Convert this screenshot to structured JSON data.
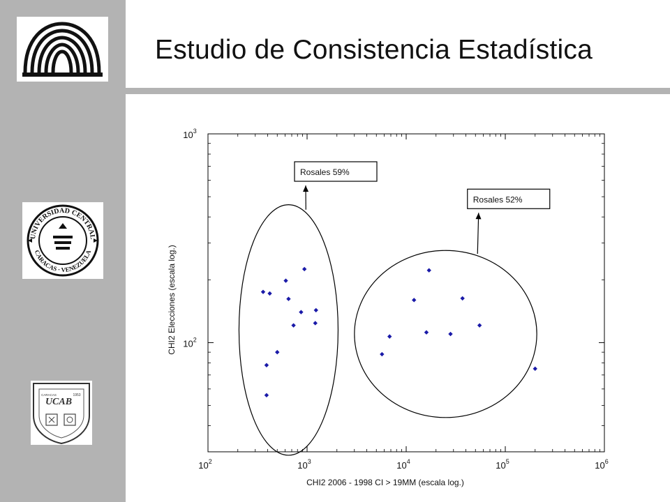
{
  "slide": {
    "title": "Estudio de Consistencia Estadística"
  },
  "logos": {
    "ucv_seal_text_top": "UNIVERSIDAD CENTRAL",
    "ucv_seal_text_bottom": "CARACAS · VENEZUELA",
    "ucab_letters": "UCAB",
    "ucab_year": "1953",
    "ucab_city": "CARACAS"
  },
  "colors": {
    "sidebar": "#b3b3b3",
    "points": "#1a1aa8",
    "axes": "#000000"
  },
  "chart_data": {
    "type": "scatter",
    "xlabel": "CHI2 2006 - 1998 CI > 19MM (escala log.)",
    "ylabel": "CHI2 Elecciones (escala log.)",
    "xscale": "log",
    "yscale": "log",
    "xlim": [
      100,
      1000000
    ],
    "ylim": [
      30,
      1000
    ],
    "grid": false,
    "xticks": [
      {
        "base": "10",
        "exp": "2",
        "value": 100
      },
      {
        "base": "10",
        "exp": "3",
        "value": 1000
      },
      {
        "base": "10",
        "exp": "4",
        "value": 10000
      },
      {
        "base": "10",
        "exp": "5",
        "value": 100000
      },
      {
        "base": "10",
        "exp": "6",
        "value": 1000000
      }
    ],
    "yticks": [
      {
        "base": "10",
        "exp": "2",
        "value": 100
      },
      {
        "base": "10",
        "exp": "3",
        "value": 1000
      }
    ],
    "points": [
      {
        "x": 360,
        "y": 175
      },
      {
        "x": 420,
        "y": 172
      },
      {
        "x": 610,
        "y": 198
      },
      {
        "x": 940,
        "y": 225
      },
      {
        "x": 650,
        "y": 162
      },
      {
        "x": 870,
        "y": 140
      },
      {
        "x": 1230,
        "y": 143
      },
      {
        "x": 730,
        "y": 121
      },
      {
        "x": 1210,
        "y": 124
      },
      {
        "x": 500,
        "y": 90
      },
      {
        "x": 390,
        "y": 78
      },
      {
        "x": 390,
        "y": 56
      },
      {
        "x": 17000,
        "y": 222
      },
      {
        "x": 12000,
        "y": 160
      },
      {
        "x": 37000,
        "y": 163
      },
      {
        "x": 55000,
        "y": 121
      },
      {
        "x": 16000,
        "y": 112
      },
      {
        "x": 28000,
        "y": 110
      },
      {
        "x": 6800,
        "y": 107
      },
      {
        "x": 5700,
        "y": 88
      },
      {
        "x": 200000,
        "y": 75
      }
    ],
    "annotations": [
      {
        "text": "Rosales 59%",
        "target": [
          1000,
          250
        ],
        "ellipse": {
          "cx": 650,
          "cy": 115,
          "rx_decades": 0.75,
          "ry_decades": 0.9
        }
      },
      {
        "text": "Rosales 52%",
        "target": [
          30000,
          230
        ],
        "ellipse": {
          "cx": 25000,
          "cy": 110,
          "rx_decades": 1.38,
          "ry_decades": 0.6
        }
      }
    ]
  }
}
